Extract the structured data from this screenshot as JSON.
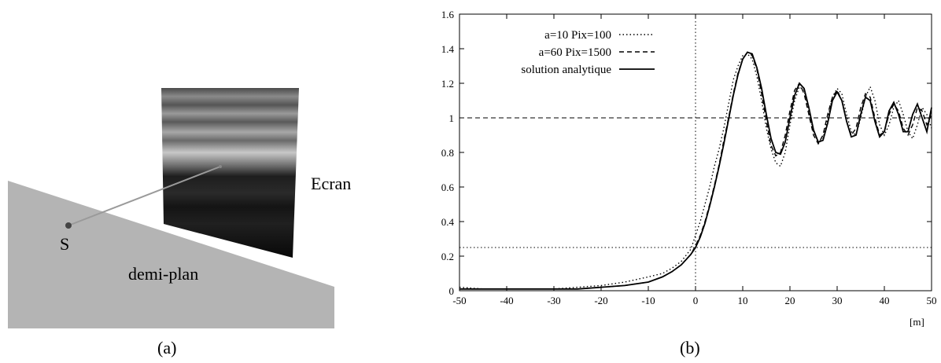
{
  "panel_a": {
    "caption": "(a)",
    "label_ecran": "Ecran",
    "label_source": "S",
    "label_halfplane": "demi-plan"
  },
  "panel_b": {
    "caption": "(b)"
  },
  "chart_data": {
    "type": "line",
    "xlabel": "[m]",
    "ylabel": "",
    "xlim": [
      -50,
      50
    ],
    "ylim": [
      0,
      1.6
    ],
    "xticks": [
      -50,
      -40,
      -30,
      -20,
      -10,
      0,
      10,
      20,
      30,
      40,
      50
    ],
    "yticks": [
      0,
      0.2,
      0.4,
      0.6,
      0.8,
      1,
      1.2,
      1.4,
      1.6
    ],
    "xtick_labels": [
      "-50",
      "-40",
      "-30",
      "-20",
      "-10",
      "0",
      "10",
      "20",
      "30",
      "40",
      "50"
    ],
    "ytick_labels": [
      "0",
      "0.2",
      "0.4",
      "0.6",
      "0.8",
      "1",
      "1.2",
      "1.4",
      "1.6"
    ],
    "legend_position": "top-left",
    "grid": false,
    "reference_lines": [
      {
        "orientation": "horizontal",
        "value": 1,
        "style": "dashed"
      },
      {
        "orientation": "horizontal",
        "value": 0.25,
        "style": "dotted"
      },
      {
        "orientation": "vertical",
        "value": 0,
        "style": "dotted"
      }
    ],
    "series": [
      {
        "name": "a=10 Pix=100",
        "style": "dotted",
        "x": [
          -50,
          -45,
          -40,
          -35,
          -30,
          -25,
          -20,
          -15,
          -10,
          -7,
          -5,
          -3,
          -1,
          0,
          1,
          2,
          3,
          4,
          5,
          6,
          7,
          8,
          9,
          10,
          11,
          12,
          13,
          14,
          15,
          16,
          17,
          18,
          19,
          20,
          21,
          22,
          23,
          24,
          25,
          26,
          27,
          28,
          29,
          30,
          31,
          32,
          33,
          34,
          35,
          36,
          37,
          38,
          39,
          40,
          41,
          42,
          43,
          44,
          45,
          46,
          47,
          48,
          49,
          50
        ],
        "values": [
          0.02,
          0.01,
          0.01,
          0.01,
          0.01,
          0.02,
          0.03,
          0.05,
          0.08,
          0.1,
          0.13,
          0.17,
          0.24,
          0.32,
          0.4,
          0.5,
          0.6,
          0.72,
          0.82,
          0.94,
          1.08,
          1.22,
          1.3,
          1.36,
          1.37,
          1.34,
          1.24,
          1.1,
          0.94,
          0.82,
          0.74,
          0.72,
          0.8,
          0.96,
          1.1,
          1.18,
          1.16,
          1.04,
          0.92,
          0.86,
          0.88,
          1.0,
          1.12,
          1.17,
          1.14,
          1.02,
          0.92,
          0.9,
          1.0,
          1.12,
          1.18,
          1.1,
          0.96,
          0.9,
          0.96,
          1.06,
          1.1,
          1.02,
          0.92,
          0.88,
          0.96,
          1.06,
          1.02,
          0.94
        ]
      },
      {
        "name": "a=60 Pix=1500",
        "style": "dashed",
        "x": [
          -50,
          -45,
          -40,
          -35,
          -30,
          -25,
          -20,
          -15,
          -10,
          -7,
          -5,
          -3,
          -1,
          0,
          1,
          2,
          3,
          4,
          5,
          6,
          7,
          8,
          9,
          10,
          11,
          12,
          13,
          14,
          15,
          16,
          17,
          18,
          19,
          20,
          21,
          22,
          23,
          24,
          25,
          26,
          27,
          28,
          29,
          30,
          31,
          32,
          33,
          34,
          35,
          36,
          37,
          38,
          39,
          40,
          41,
          42,
          43,
          44,
          45,
          46,
          47,
          48,
          49,
          50
        ],
        "values": [
          0.01,
          0.01,
          0.01,
          0.01,
          0.01,
          0.01,
          0.02,
          0.03,
          0.05,
          0.08,
          0.11,
          0.15,
          0.21,
          0.26,
          0.32,
          0.4,
          0.5,
          0.61,
          0.73,
          0.87,
          1.0,
          1.14,
          1.26,
          1.34,
          1.38,
          1.36,
          1.28,
          1.14,
          0.98,
          0.84,
          0.78,
          0.8,
          0.9,
          1.04,
          1.16,
          1.2,
          1.14,
          1.02,
          0.9,
          0.85,
          0.9,
          1.02,
          1.12,
          1.16,
          1.1,
          0.98,
          0.9,
          0.94,
          1.06,
          1.14,
          1.12,
          1.0,
          0.9,
          0.92,
          1.02,
          1.08,
          1.04,
          0.94,
          0.9,
          0.96,
          1.06,
          1.04,
          0.96,
          1.02
        ]
      },
      {
        "name": "solution analytique",
        "style": "solid",
        "x": [
          -50,
          -45,
          -40,
          -35,
          -30,
          -25,
          -20,
          -15,
          -10,
          -7,
          -5,
          -3,
          -1,
          0,
          1,
          2,
          3,
          4,
          5,
          6,
          7,
          8,
          9,
          10,
          11,
          12,
          13,
          14,
          15,
          16,
          17,
          18,
          19,
          20,
          21,
          22,
          23,
          24,
          25,
          26,
          27,
          28,
          29,
          30,
          31,
          32,
          33,
          34,
          35,
          36,
          37,
          38,
          39,
          40,
          41,
          42,
          43,
          44,
          45,
          46,
          47,
          48,
          49,
          50
        ],
        "values": [
          0.01,
          0.01,
          0.01,
          0.01,
          0.01,
          0.01,
          0.02,
          0.03,
          0.05,
          0.08,
          0.11,
          0.15,
          0.21,
          0.25,
          0.31,
          0.39,
          0.49,
          0.6,
          0.72,
          0.85,
          0.99,
          1.13,
          1.25,
          1.34,
          1.38,
          1.37,
          1.29,
          1.17,
          1.02,
          0.88,
          0.8,
          0.79,
          0.86,
          1.0,
          1.13,
          1.2,
          1.17,
          1.06,
          0.93,
          0.86,
          0.87,
          0.97,
          1.1,
          1.15,
          1.1,
          0.98,
          0.89,
          0.9,
          1.02,
          1.12,
          1.1,
          0.98,
          0.89,
          0.92,
          1.04,
          1.09,
          1.02,
          0.92,
          0.92,
          1.02,
          1.08,
          1.0,
          0.92,
          1.06
        ]
      }
    ]
  }
}
